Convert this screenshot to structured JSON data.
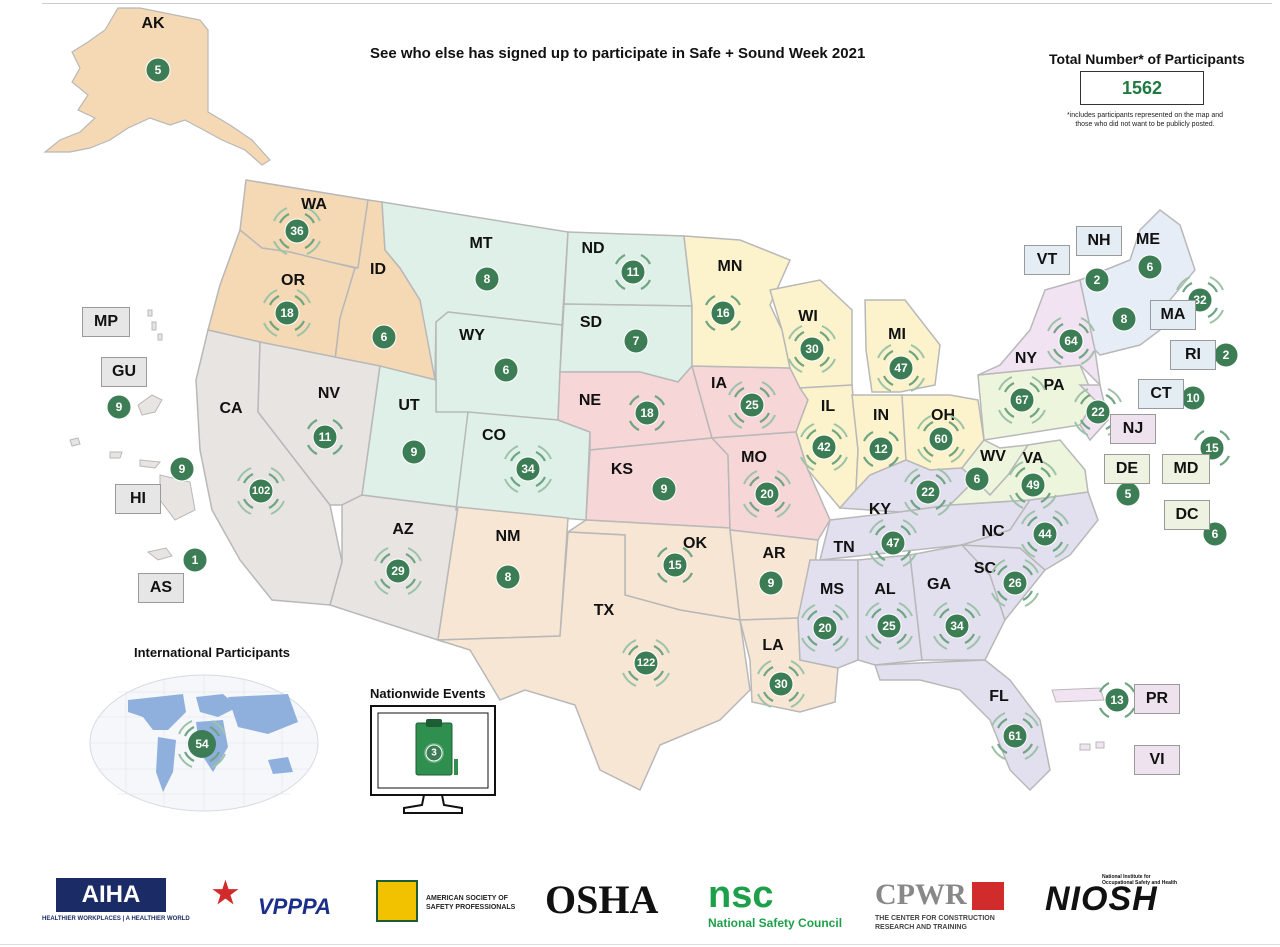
{
  "headline": "See who else has signed up to participate in Safe + Sound Week 2021",
  "total": {
    "title": "Total Number* of Participants",
    "value": "1562",
    "note": "*includes participants represented on the map and those who did not want to be publicly posted."
  },
  "states": {
    "AK": {
      "label": "AK",
      "count": "5"
    },
    "WA": {
      "label": "WA",
      "count": "36"
    },
    "OR": {
      "label": "OR",
      "count": "18"
    },
    "ID": {
      "label": "ID",
      "count": "6"
    },
    "MT": {
      "label": "MT",
      "count": "8"
    },
    "ND": {
      "label": "ND",
      "count": "11"
    },
    "SD": {
      "label": "SD",
      "count": "7"
    },
    "WY": {
      "label": "WY",
      "count": "6"
    },
    "MN": {
      "label": "MN",
      "count": "16"
    },
    "WI": {
      "label": "WI",
      "count": "30"
    },
    "MI": {
      "label": "MI",
      "count": "47"
    },
    "CA": {
      "label": "CA",
      "count": "102"
    },
    "NV": {
      "label": "NV",
      "count": "11"
    },
    "UT": {
      "label": "UT",
      "count": "9"
    },
    "CO": {
      "label": "CO",
      "count": "34"
    },
    "NE": {
      "label": "NE",
      "count": "18"
    },
    "IA": {
      "label": "IA",
      "count": "25"
    },
    "KS": {
      "label": "KS",
      "count": "9"
    },
    "MO": {
      "label": "MO",
      "count": "20"
    },
    "IL": {
      "label": "IL",
      "count": "42"
    },
    "IN": {
      "label": "IN",
      "count": "12"
    },
    "OH": {
      "label": "OH",
      "count": "60"
    },
    "KY": {
      "label": "KY",
      "count": "22"
    },
    "WV": {
      "label": "WV",
      "count": "6"
    },
    "VA": {
      "label": "VA",
      "count": "49"
    },
    "PA": {
      "label": "PA",
      "count": "67"
    },
    "NY": {
      "label": "NY",
      "count": "64"
    },
    "NH": {
      "label": "NH",
      "count": "2"
    },
    "ME": {
      "label": "ME",
      "count": "6"
    },
    "VT": {
      "label": "VT",
      "count": "8"
    },
    "MA": {
      "label": "MA",
      "count": "32"
    },
    "RI": {
      "label": "RI",
      "count": "2"
    },
    "CT": {
      "label": "CT",
      "count": "10"
    },
    "NJ": {
      "label": "NJ",
      "count": "22"
    },
    "DE": {
      "label": "DE",
      "count": "5"
    },
    "MD": {
      "label": "MD",
      "count": "15"
    },
    "DC": {
      "label": "DC",
      "count": "6"
    },
    "AZ": {
      "label": "AZ",
      "count": "29"
    },
    "NM": {
      "label": "NM",
      "count": "8"
    },
    "OK": {
      "label": "OK",
      "count": "15"
    },
    "TX": {
      "label": "TX",
      "count": "122"
    },
    "AR": {
      "label": "AR",
      "count": "9"
    },
    "LA": {
      "label": "LA",
      "count": "30"
    },
    "TN": {
      "label": "TN",
      "count": "47"
    },
    "NC": {
      "label": "NC",
      "count": "44"
    },
    "SC": {
      "label": "SC",
      "count": "26"
    },
    "MS": {
      "label": "MS",
      "count": "20"
    },
    "AL": {
      "label": "AL",
      "count": "25"
    },
    "GA": {
      "label": "GA",
      "count": "34"
    },
    "FL": {
      "label": "FL",
      "count": "61"
    },
    "PR": {
      "label": "PR",
      "count": "13"
    },
    "VI": {
      "label": "VI"
    },
    "HI": {
      "label": "HI",
      "count": "9"
    },
    "AS": {
      "label": "AS",
      "count": "1"
    },
    "GU": {
      "label": "GU",
      "count": "9"
    },
    "MP": {
      "label": "MP"
    }
  },
  "international": {
    "title": "International Participants",
    "count": "54"
  },
  "nationwide": {
    "title": "Nationwide Events",
    "count": "3"
  },
  "region_colors": {
    "west": "#f5d9b5",
    "southwest_gray": "#e8e4e2",
    "plains": "#dff0e9",
    "central_pink": "#f6d6d6",
    "lakes": "#fcf3cc",
    "southeast": "#e2e0ef",
    "south_central": "#f7e6d4",
    "midatlantic": "#eef5dd",
    "newengland": "#e6edf6",
    "ny_pink": "#f1e3f2",
    "badge": "#3d7d55"
  },
  "logos": {
    "aiha": "AIHA",
    "aiha_tag": "HEALTHIER WORKPLACES | A HEALTHIER WORLD",
    "vpppa": "VPPPA",
    "assp": "AMERICAN SOCIETY OF SAFETY PROFESSIONALS",
    "osha": "OSHA",
    "nsc": "nsc",
    "nsc_tag": "National Safety Council",
    "cpwr": "CPWR",
    "cpwr_tag": "THE CENTER FOR CONSTRUCTION RESEARCH AND TRAINING",
    "niosh": "NIOSH",
    "niosh_tag": "National Institute for Occupational Safety and Health"
  }
}
